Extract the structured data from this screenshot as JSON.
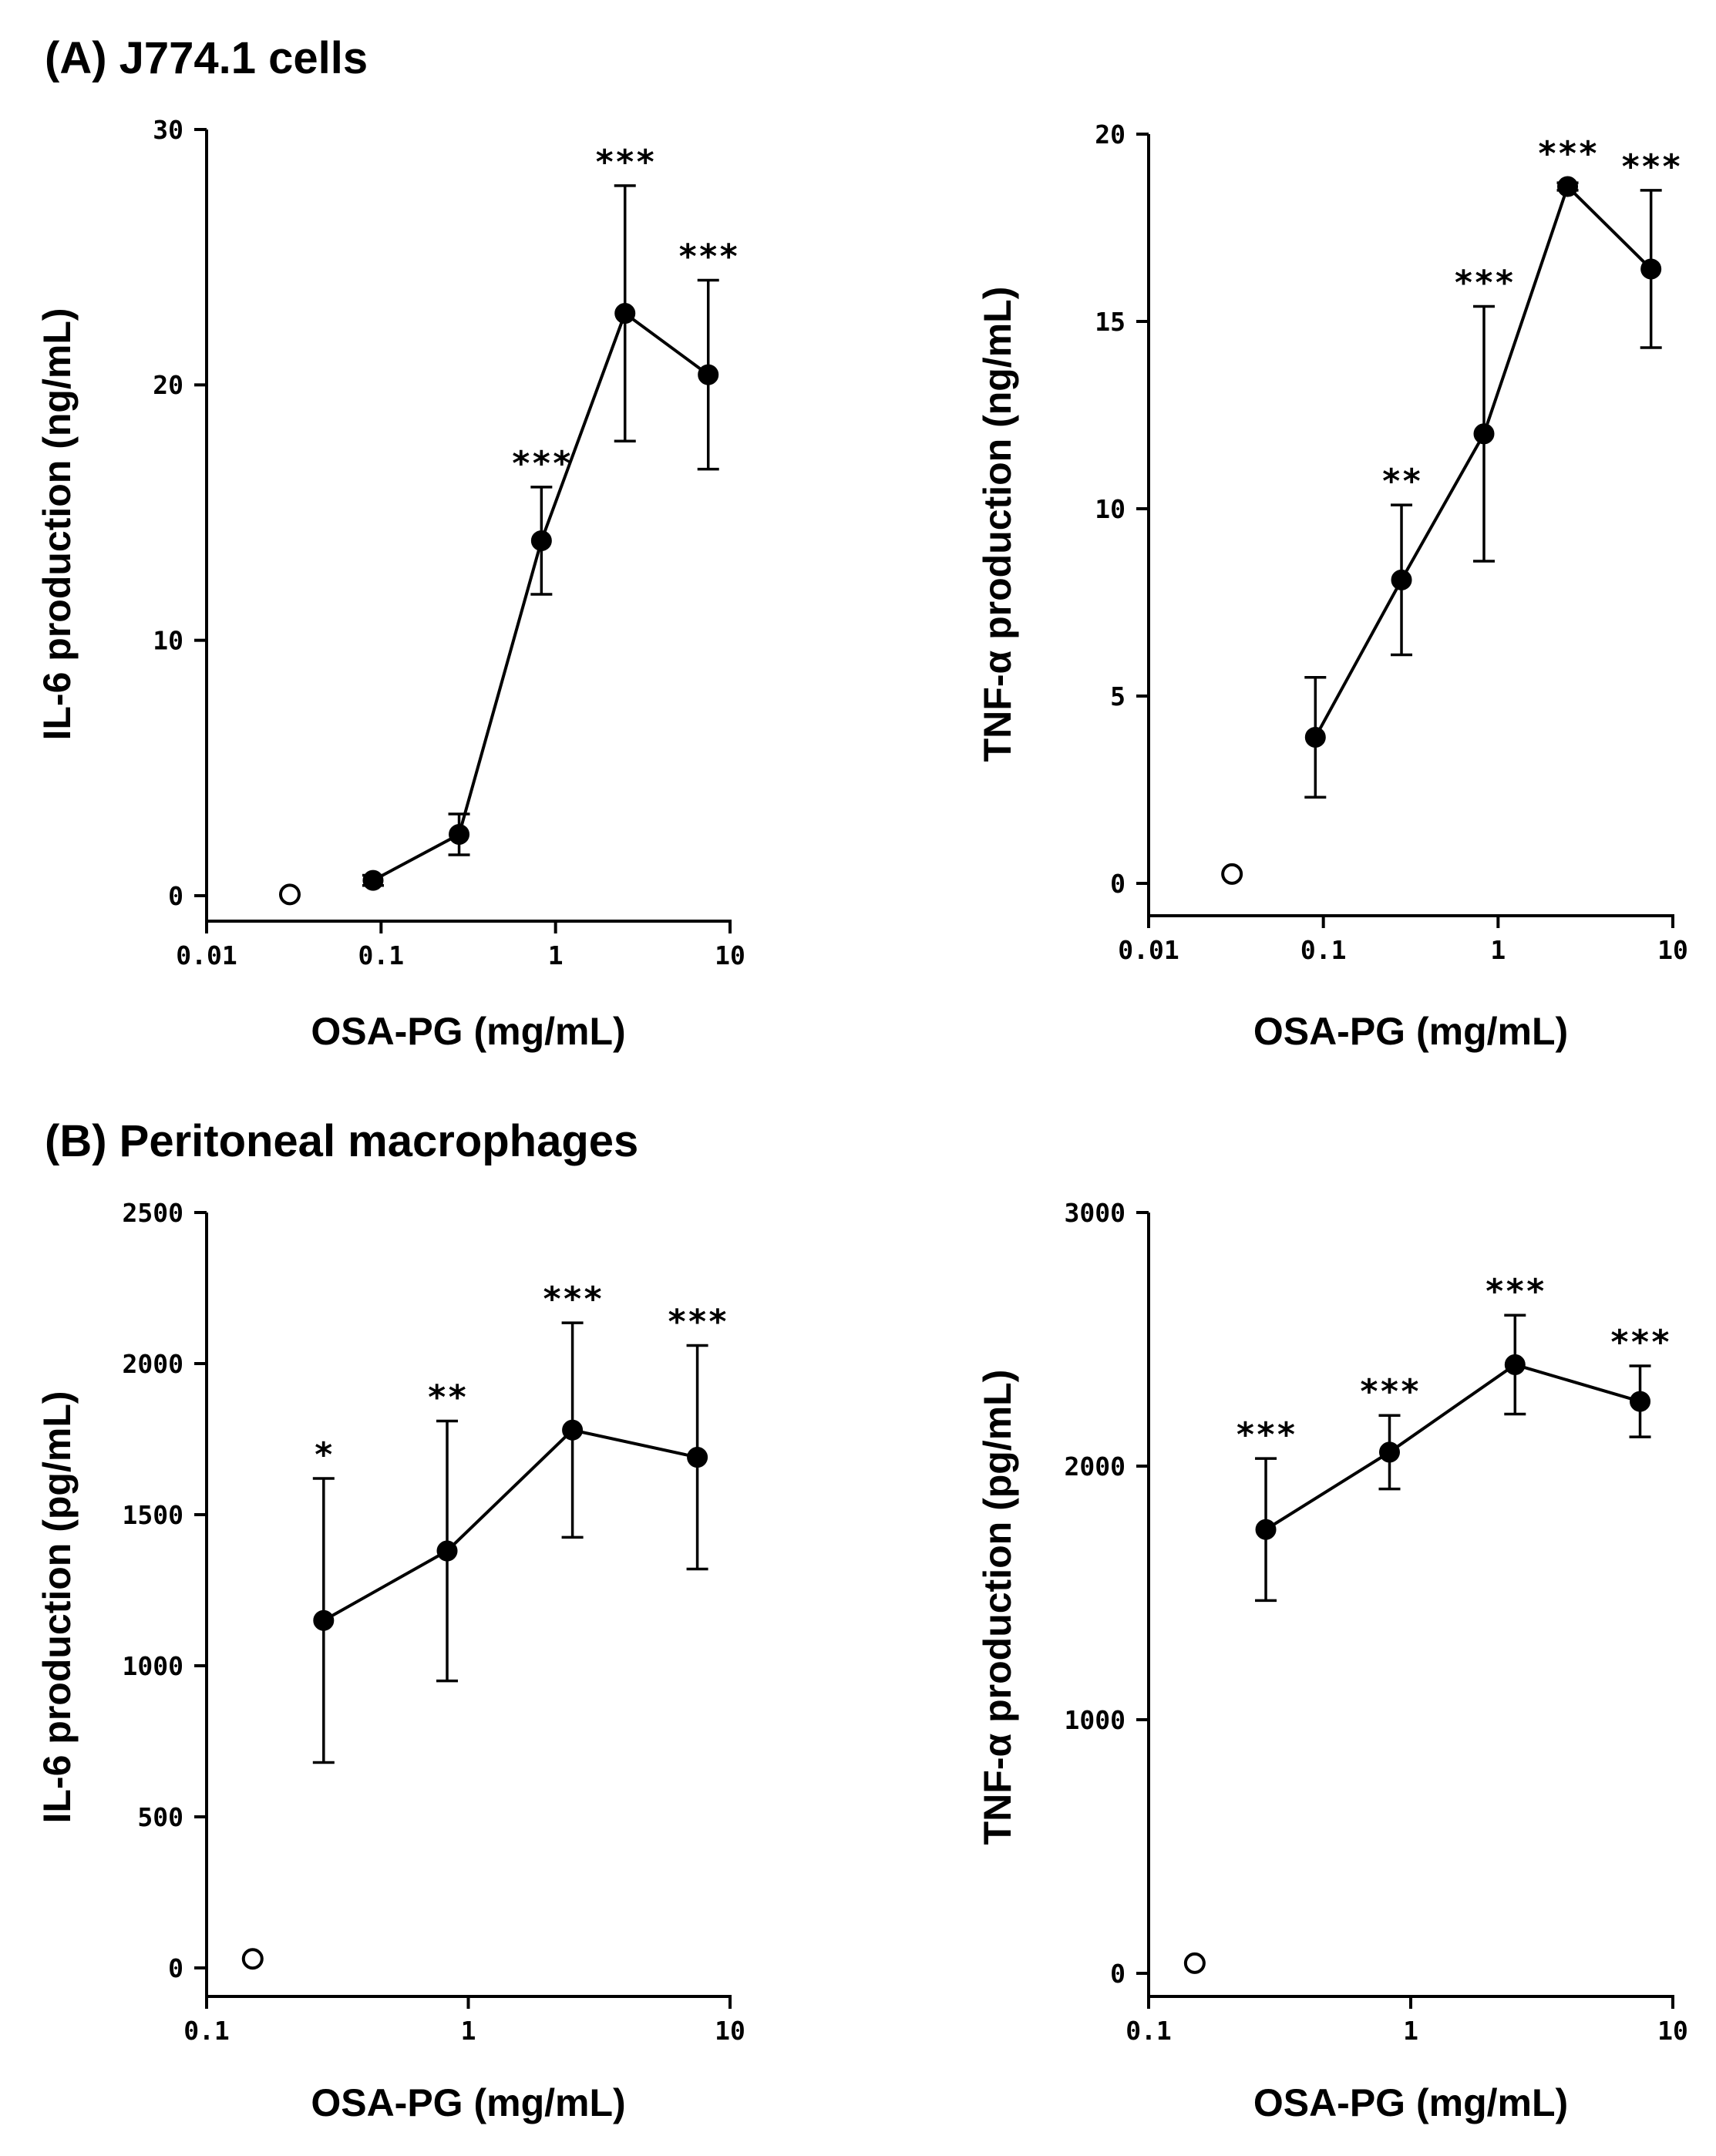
{
  "sections": [
    {
      "label": "(A) J774.1 cells"
    },
    {
      "label": "(B) Peritoneal macrophages"
    }
  ],
  "chart_data": [
    {
      "type": "line",
      "id": "a-il6",
      "panel": "(A) J774.1 cells",
      "xlabel": "OSA-PG (mg/mL)",
      "ylabel": "IL-6 production (ng/mL)",
      "xscale": "log",
      "xlim": [
        0.01,
        10
      ],
      "xticks": [
        0.01,
        0.1,
        1,
        10
      ],
      "xtick_labels": [
        "0.01",
        "0.1",
        "1",
        "10"
      ],
      "ylim": [
        0,
        30
      ],
      "yticks": [
        0,
        10,
        20,
        30
      ],
      "ytick_labels": [
        "0",
        "10",
        "20",
        "30"
      ],
      "control": {
        "x": 0.03,
        "y": 0.05
      },
      "series": [
        {
          "name": "OSA-PG",
          "x": [
            0.09,
            0.28,
            0.83,
            2.5,
            7.5
          ],
          "y": [
            0.6,
            2.4,
            13.9,
            22.8,
            20.4
          ],
          "err": [
            0.2,
            0.8,
            2.1,
            5.0,
            3.7
          ],
          "sig": [
            "",
            "",
            "***",
            "***",
            "***"
          ]
        }
      ]
    },
    {
      "type": "line",
      "id": "a-tnf",
      "panel": "(A) J774.1 cells",
      "xlabel": "OSA-PG (mg/mL)",
      "ylabel": "TNF-α production (ng/mL)",
      "xscale": "log",
      "xlim": [
        0.01,
        10
      ],
      "xticks": [
        0.01,
        0.1,
        1,
        10
      ],
      "xtick_labels": [
        "0.01",
        "0.1",
        "1",
        "10"
      ],
      "ylim": [
        0,
        20
      ],
      "yticks": [
        0,
        5,
        10,
        15,
        20
      ],
      "ytick_labels": [
        "0",
        "5",
        "10",
        "15",
        "20"
      ],
      "control": {
        "x": 0.03,
        "y": 0.25
      },
      "series": [
        {
          "name": "OSA-PG",
          "x": [
            0.09,
            0.28,
            0.83,
            2.5,
            7.5
          ],
          "y": [
            3.9,
            8.1,
            12.0,
            18.6,
            16.4
          ],
          "err": [
            1.6,
            2.0,
            3.4,
            0.1,
            2.1
          ],
          "sig": [
            "",
            "**",
            "***",
            "***",
            "***"
          ]
        }
      ]
    },
    {
      "type": "line",
      "id": "b-il6",
      "panel": "(B) Peritoneal macrophages",
      "xlabel": "OSA-PG (mg/mL)",
      "ylabel": "IL-6 production (pg/mL)",
      "xscale": "log",
      "xlim": [
        0.1,
        10
      ],
      "xticks": [
        0.1,
        1,
        10
      ],
      "xtick_labels": [
        "0.1",
        "1",
        "10"
      ],
      "ylim": [
        0,
        2500
      ],
      "yticks": [
        0,
        500,
        1000,
        1500,
        2000,
        2500
      ],
      "ytick_labels": [
        "0",
        "500",
        "1000",
        "1500",
        "2000",
        "2500"
      ],
      "control": {
        "x": 0.15,
        "y": 30
      },
      "series": [
        {
          "name": "OSA-PG",
          "x": [
            0.28,
            0.83,
            2.5,
            7.5
          ],
          "y": [
            1150,
            1380,
            1780,
            1690
          ],
          "err": [
            470,
            430,
            355,
            370
          ],
          "sig": [
            "*",
            "**",
            "***",
            "***"
          ]
        }
      ]
    },
    {
      "type": "line",
      "id": "b-tnf",
      "panel": "(B) Peritoneal macrophages",
      "xlabel": "OSA-PG (mg/mL)",
      "ylabel": "TNF-α production (pg/mL)",
      "xscale": "log",
      "xlim": [
        0.1,
        10
      ],
      "xticks": [
        0.1,
        1,
        10
      ],
      "xtick_labels": [
        "0.1",
        "1",
        "10"
      ],
      "ylim": [
        0,
        3000
      ],
      "yticks": [
        0,
        1000,
        2000,
        3000
      ],
      "ytick_labels": [
        "0",
        "1000",
        "2000",
        "3000"
      ],
      "control": {
        "x": 0.15,
        "y": 40
      },
      "series": [
        {
          "name": "OSA-PG",
          "x": [
            0.28,
            0.83,
            2.5,
            7.5
          ],
          "y": [
            1750,
            2055,
            2400,
            2255
          ],
          "err": [
            280,
            145,
            195,
            140
          ],
          "sig": [
            "***",
            "***",
            "***",
            "***"
          ]
        }
      ]
    }
  ]
}
